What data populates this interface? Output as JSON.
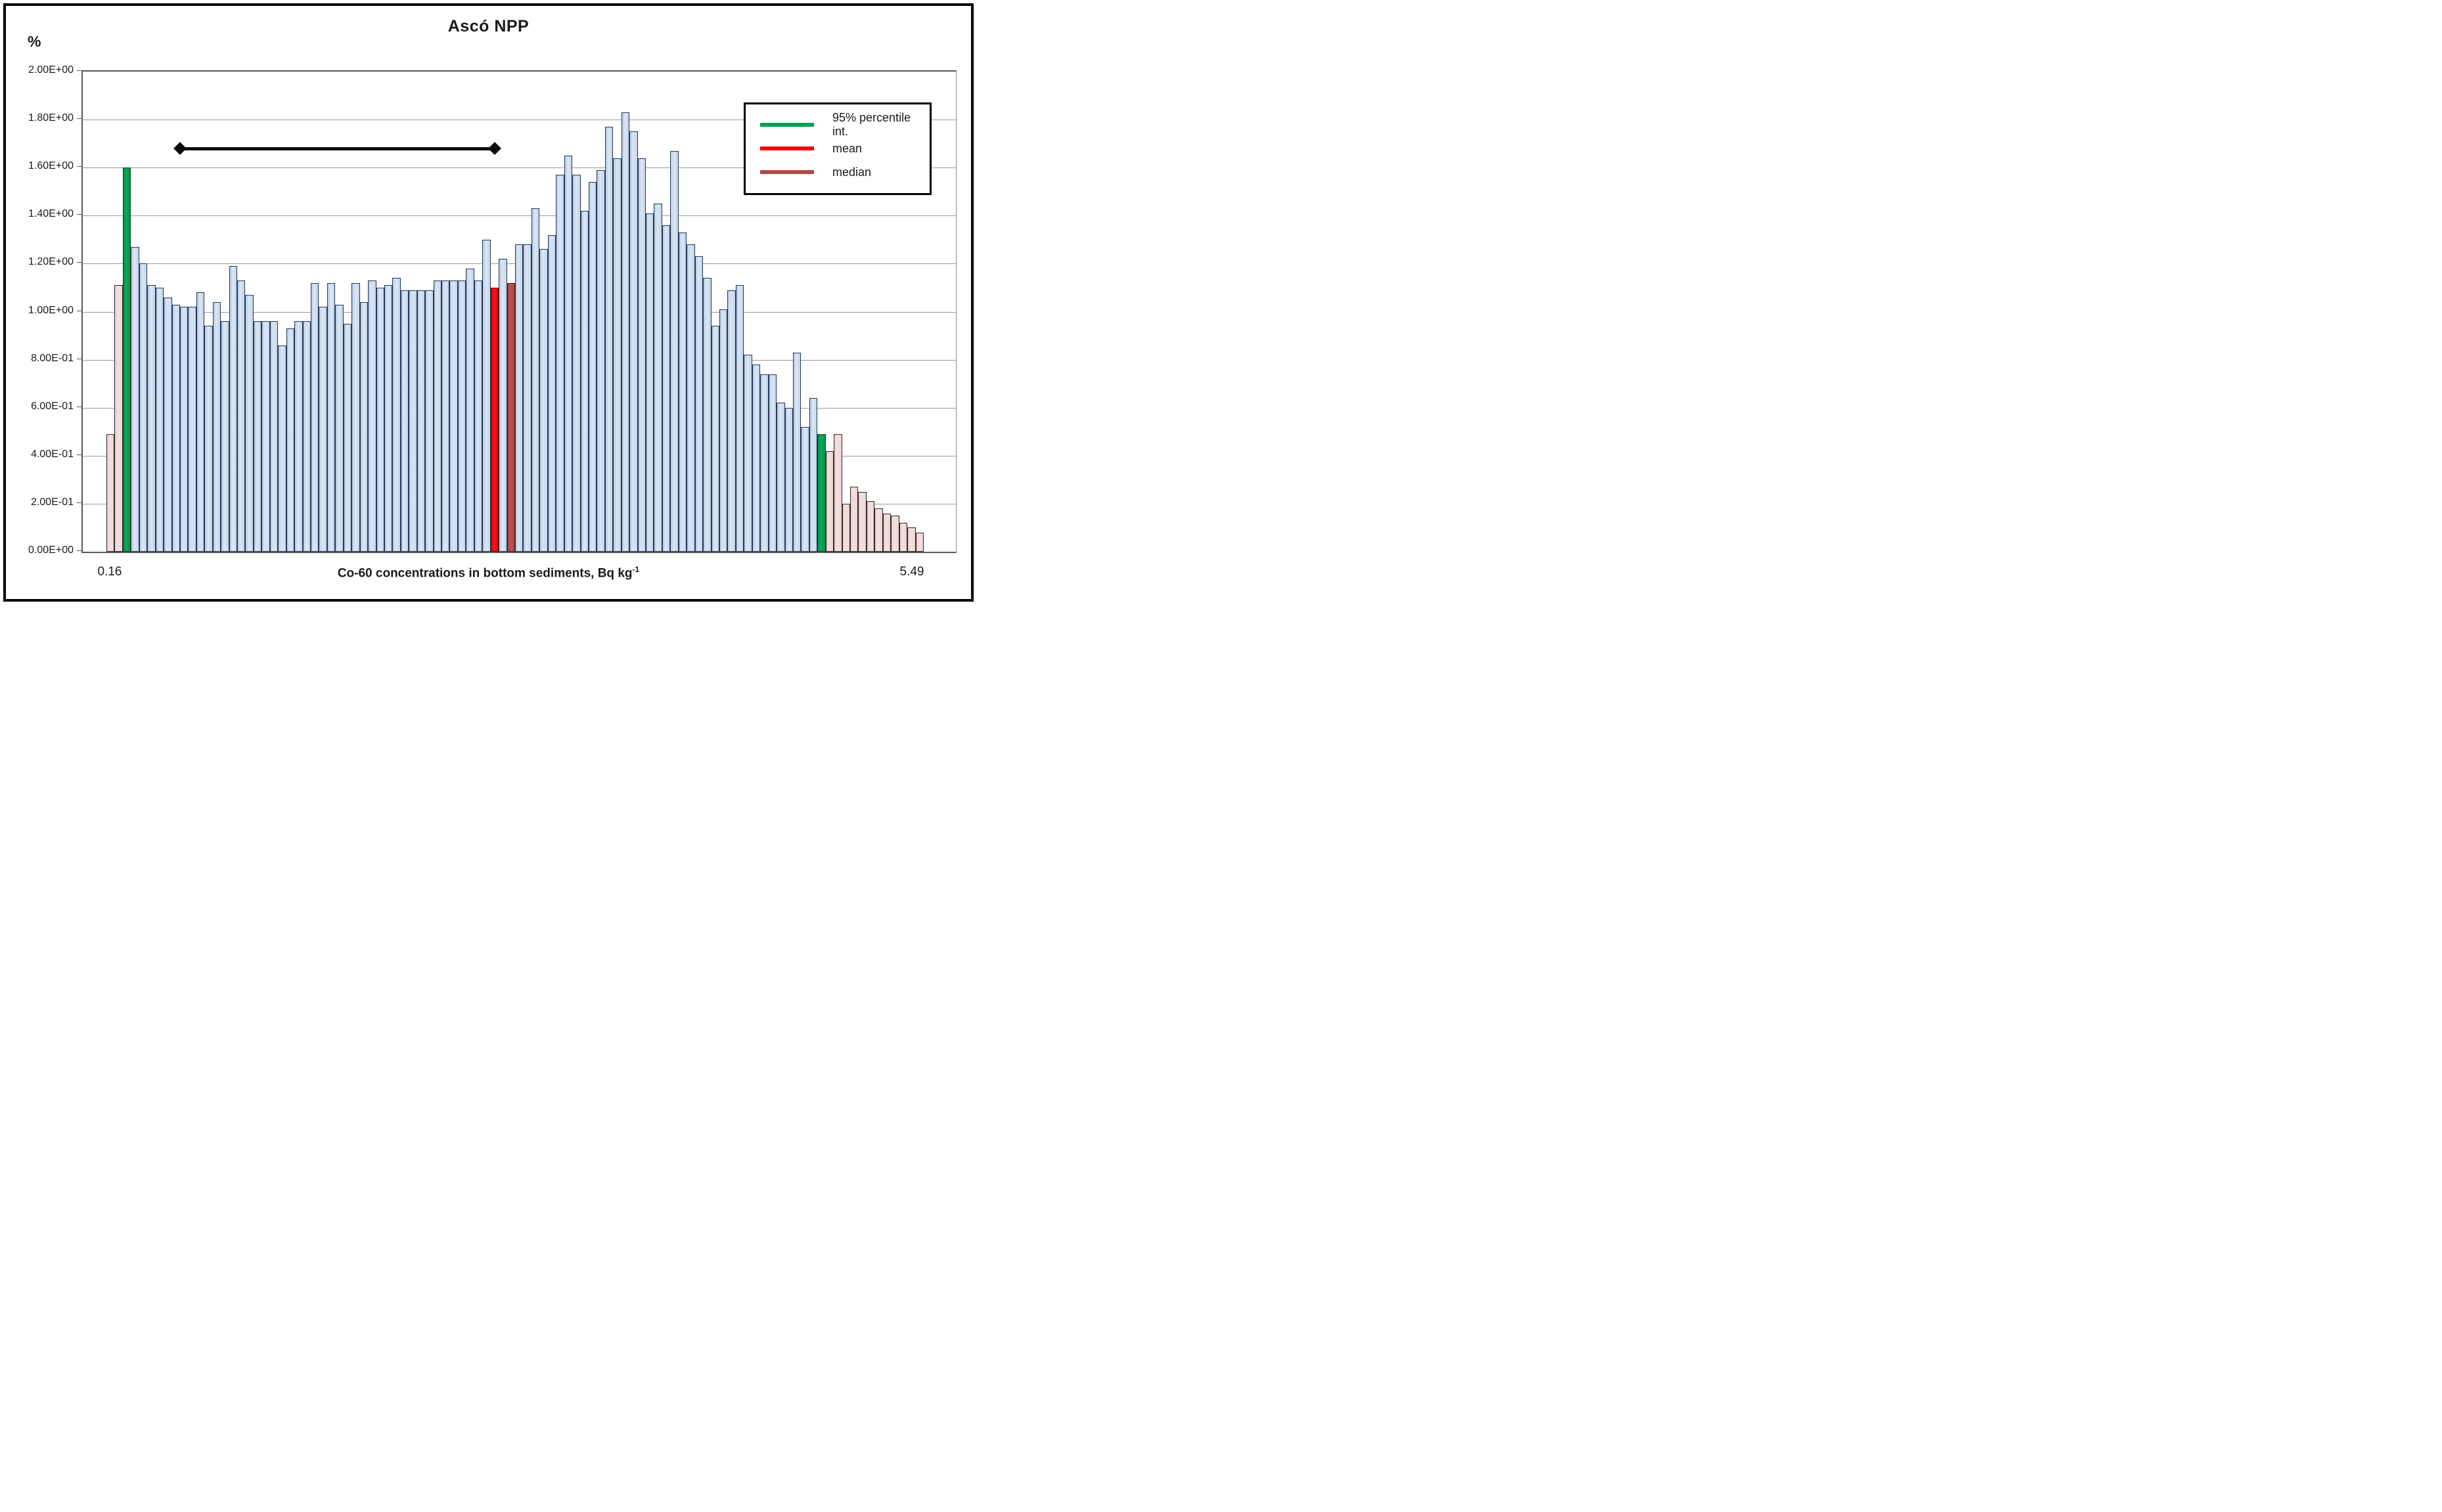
{
  "title": "Ascó NPP",
  "y_axis": {
    "unit_label": "%",
    "tick_labels": [
      "2.00E+00",
      "1.80E+00",
      "1.60E+00",
      "1.40E+00",
      "1.20E+00",
      "1.00E+00",
      "8.00E-01",
      "6.00E-01",
      "4.00E-01",
      "2.00E-01",
      "0.00E+00"
    ],
    "tick_values": [
      2.0,
      1.8,
      1.6,
      1.4,
      1.2,
      1.0,
      0.8,
      0.6,
      0.4,
      0.2,
      0.0
    ]
  },
  "x_axis": {
    "left_label": "0.16",
    "right_label": "5.49",
    "title_main": "Co-60 concentrations in bottom sediments, Bq kg",
    "title_superscript": "-1"
  },
  "legend": {
    "items": [
      {
        "label": "95% percentile int.",
        "color": "#00a04e"
      },
      {
        "label": "mean",
        "color": "#f50100"
      },
      {
        "label": "median",
        "color": "#b04a47"
      }
    ]
  },
  "chart_data": {
    "type": "bar",
    "title": "Ascó NPP",
    "xlabel": "Co-60 concentrations in bottom sediments, Bq kg⁻¹",
    "ylabel": "%",
    "ylim": [
      0,
      2.0
    ],
    "grid": true,
    "legend_position": "top-right",
    "x_range_labels": [
      "0.16",
      "5.49"
    ],
    "mean": 1.1,
    "median": 1.12,
    "percentile_bound_heights": [
      1.6,
      0.49
    ],
    "annotation_range_line": {
      "y_value": 1.68,
      "from_bar": 9,
      "to_bar": 47.5,
      "color": "#0d0d0d",
      "end_marker": "diamond"
    },
    "bar_kind_colors": {
      "blue": "#c9d9ed",
      "pink": "#f1dcdb",
      "green": "#00a04e",
      "red": "#f50100",
      "median": "#b04a47"
    },
    "bar_kind_meaning": {
      "blue": "distribution",
      "pink": "outside 95% percentile interval",
      "green": "95% percentile bound",
      "red": "mean",
      "median": "median"
    },
    "values": [
      0.49,
      1.11,
      1.6,
      1.27,
      1.2,
      1.11,
      1.1,
      1.06,
      1.03,
      1.02,
      1.02,
      1.08,
      0.94,
      1.04,
      0.96,
      1.19,
      1.13,
      1.07,
      0.96,
      0.96,
      0.96,
      0.86,
      0.93,
      0.96,
      0.96,
      1.12,
      1.02,
      1.12,
      1.03,
      0.95,
      1.12,
      1.04,
      1.13,
      1.1,
      1.11,
      1.14,
      1.09,
      1.09,
      1.09,
      1.09,
      1.13,
      1.13,
      1.13,
      1.13,
      1.18,
      1.13,
      1.3,
      1.1,
      1.22,
      1.12,
      1.28,
      1.28,
      1.43,
      1.26,
      1.32,
      1.57,
      1.65,
      1.57,
      1.42,
      1.54,
      1.59,
      1.77,
      1.64,
      1.83,
      1.75,
      1.64,
      1.41,
      1.45,
      1.36,
      1.67,
      1.33,
      1.28,
      1.23,
      1.14,
      0.94,
      1.01,
      1.09,
      1.11,
      0.82,
      0.78,
      0.74,
      0.74,
      0.62,
      0.6,
      0.83,
      0.52,
      0.64,
      0.49,
      0.42,
      0.49,
      0.2,
      0.27,
      0.25,
      0.21,
      0.18,
      0.16,
      0.15,
      0.12,
      0.1,
      0.08
    ],
    "kinds": [
      "pink",
      "pink",
      "green",
      "blue",
      "blue",
      "blue",
      "blue",
      "blue",
      "blue",
      "blue",
      "blue",
      "blue",
      "blue",
      "blue",
      "blue",
      "blue",
      "blue",
      "blue",
      "blue",
      "blue",
      "blue",
      "blue",
      "blue",
      "blue",
      "blue",
      "blue",
      "blue",
      "blue",
      "blue",
      "blue",
      "blue",
      "blue",
      "blue",
      "blue",
      "blue",
      "blue",
      "blue",
      "blue",
      "blue",
      "blue",
      "blue",
      "blue",
      "blue",
      "blue",
      "blue",
      "blue",
      "blue",
      "red",
      "blue",
      "median",
      "blue",
      "blue",
      "blue",
      "blue",
      "blue",
      "blue",
      "blue",
      "blue",
      "blue",
      "blue",
      "blue",
      "blue",
      "blue",
      "blue",
      "blue",
      "blue",
      "blue",
      "blue",
      "blue",
      "blue",
      "blue",
      "blue",
      "blue",
      "blue",
      "blue",
      "blue",
      "blue",
      "blue",
      "blue",
      "blue",
      "blue",
      "blue",
      "blue",
      "blue",
      "blue",
      "blue",
      "blue",
      "green",
      "pink",
      "pink",
      "pink",
      "pink",
      "pink",
      "pink",
      "pink",
      "pink",
      "pink",
      "pink",
      "pink",
      "pink"
    ]
  }
}
